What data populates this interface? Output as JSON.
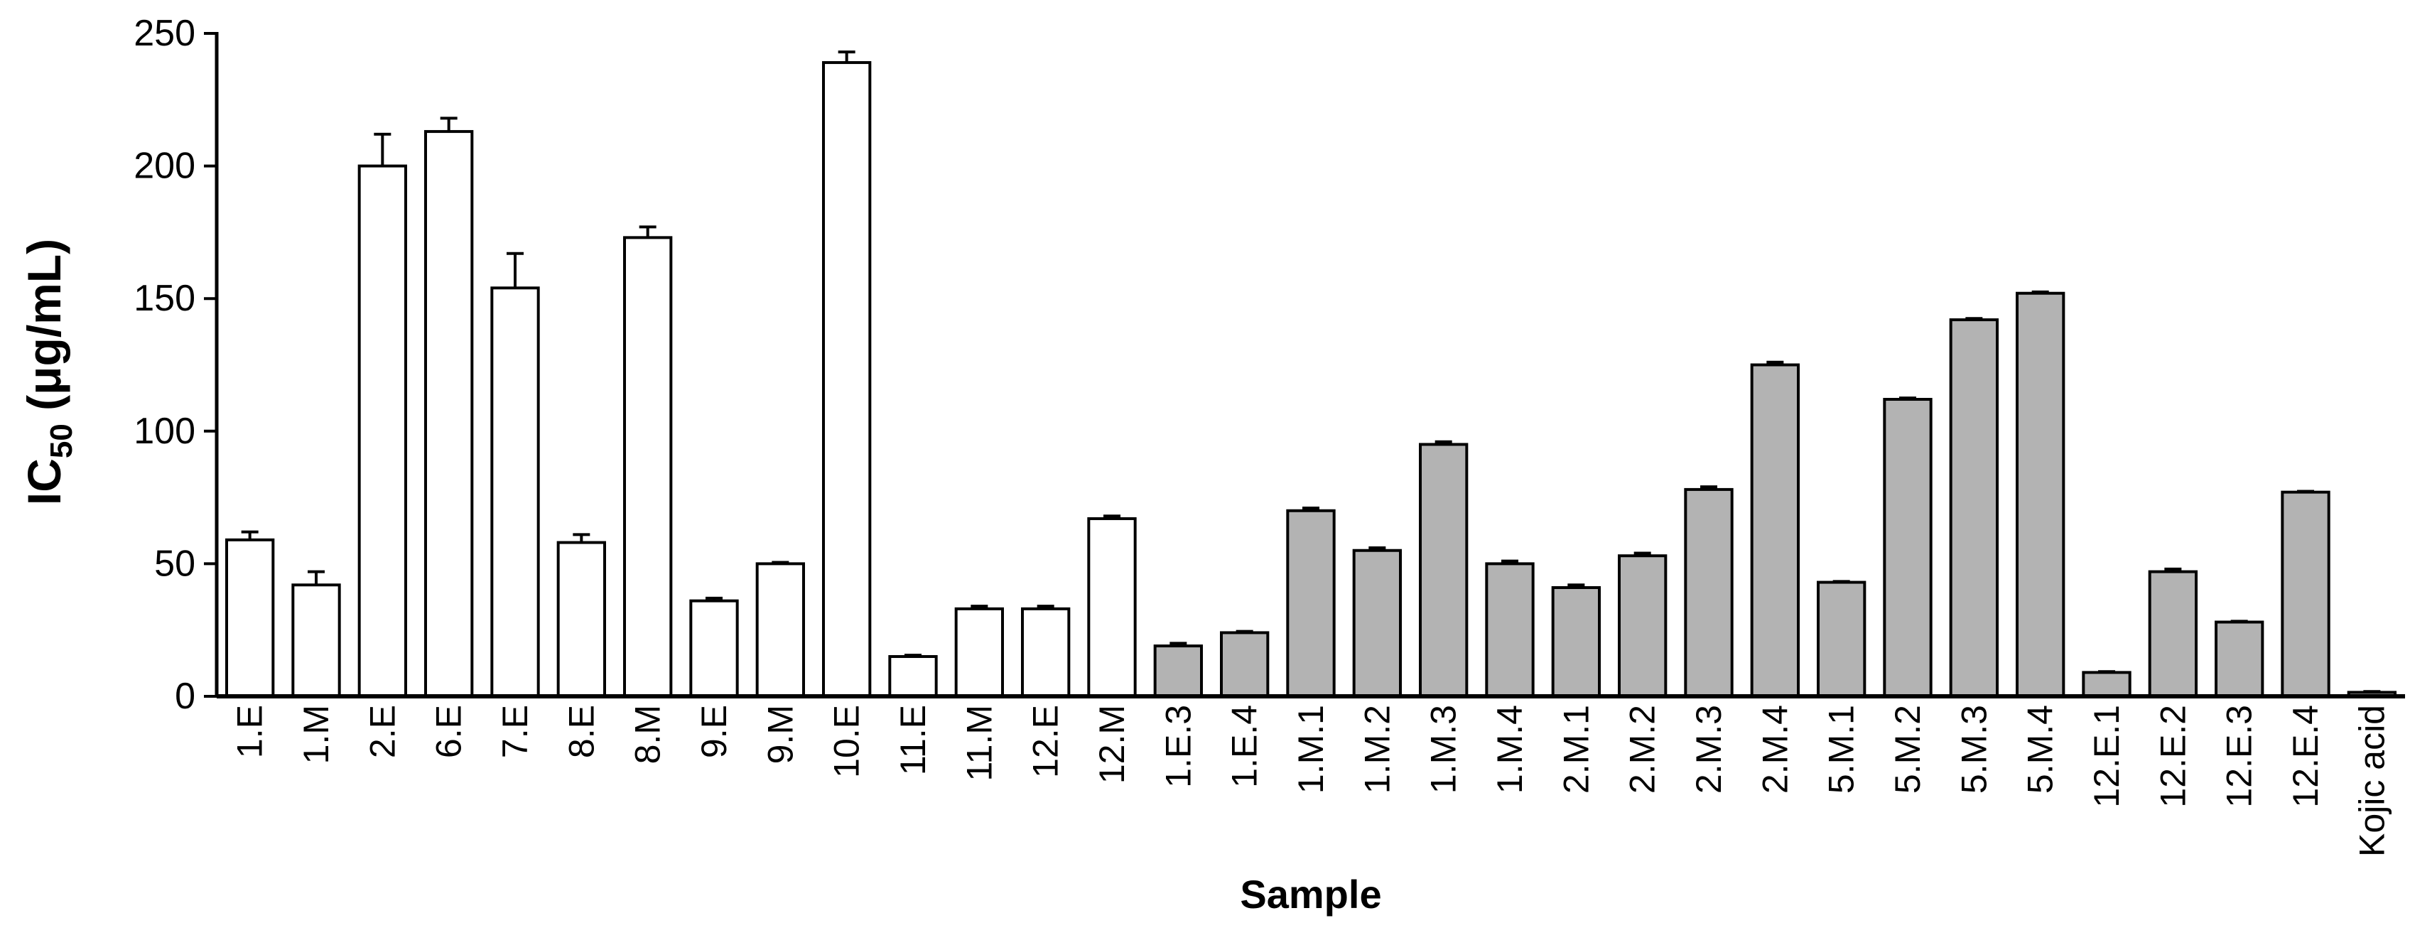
{
  "chart_data": {
    "type": "bar",
    "xlabel": "Sample",
    "ylabel": {
      "main": "IC",
      "subscript": "50",
      "unit": " (μg/mL)"
    },
    "ylim": [
      0,
      250
    ],
    "yticks": [
      0,
      50,
      100,
      150,
      200,
      250
    ],
    "grid": false,
    "categories": [
      "1.E",
      "1.M",
      "2.E",
      "6.E",
      "7.E",
      "8.E",
      "8.M",
      "9.E",
      "9.M",
      "10.E",
      "11.E",
      "11.M",
      "12.E",
      "12.M",
      "1.E.3",
      "1.E.4",
      "1.M.1",
      "1.M.2",
      "1.M.3",
      "1.M.4",
      "2.M.1",
      "2.M.2",
      "2.M.3",
      "2.M.4",
      "5.M.1",
      "5.M.2",
      "5.M.3",
      "5.M.4",
      "12.E.1",
      "12.E.2",
      "12.E.3",
      "12.E.4",
      "Kojic acid"
    ],
    "values": [
      59,
      42,
      200,
      213,
      154,
      58,
      173,
      36,
      50,
      239,
      15,
      33,
      33,
      67,
      19,
      24,
      70,
      55,
      95,
      50,
      41,
      53,
      78,
      125,
      43,
      112,
      142,
      152,
      9,
      47,
      28,
      77,
      1.5
    ],
    "errors": [
      3,
      5,
      12,
      5,
      13,
      3,
      4,
      1,
      0.5,
      4,
      0.5,
      1,
      1,
      1,
      1,
      0.5,
      1,
      1,
      1,
      1,
      1,
      1,
      1,
      1,
      0.3,
      0.5,
      0.5,
      0.5,
      0.3,
      1,
      0.3,
      0.3,
      0.3
    ],
    "fill_colors": [
      "#ffffff",
      "#ffffff",
      "#ffffff",
      "#ffffff",
      "#ffffff",
      "#ffffff",
      "#ffffff",
      "#ffffff",
      "#ffffff",
      "#ffffff",
      "#ffffff",
      "#ffffff",
      "#ffffff",
      "#ffffff",
      "#b3b3b3",
      "#b3b3b3",
      "#b3b3b3",
      "#b3b3b3",
      "#b3b3b3",
      "#b3b3b3",
      "#b3b3b3",
      "#b3b3b3",
      "#b3b3b3",
      "#b3b3b3",
      "#b3b3b3",
      "#b3b3b3",
      "#b3b3b3",
      "#b3b3b3",
      "#b3b3b3",
      "#b3b3b3",
      "#b3b3b3",
      "#b3b3b3",
      "#b3b3b3"
    ],
    "bar_stroke": "#000000",
    "axis_color": "#000000"
  }
}
